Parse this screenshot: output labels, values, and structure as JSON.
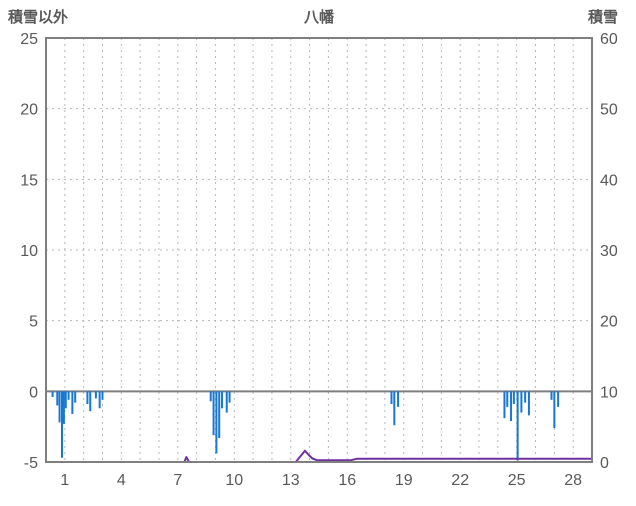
{
  "header": {
    "left_title": "積雪以外",
    "title": "八幡",
    "right_title": "積雪"
  },
  "colors": {
    "background": "#ffffff",
    "frame": "#7f7f7f",
    "grid": "#b8b8b8",
    "zero_line": "#7f7f7f",
    "text": "#595959",
    "bar": "#1777d2",
    "snow_line": "#7030a0"
  },
  "chart_data": {
    "type": "bar",
    "title": "八幡",
    "subtitle": "",
    "legend": "none",
    "left_axis": {
      "label": "積雪以外",
      "range": [
        -5,
        25
      ],
      "ticks": [
        25,
        20,
        15,
        10,
        5,
        0,
        -5
      ]
    },
    "right_axis": {
      "label": "積雪",
      "range": [
        0,
        60
      ],
      "ticks": [
        60,
        50,
        40,
        30,
        20,
        10,
        0
      ]
    },
    "x_axis": {
      "range": [
        0,
        29
      ],
      "ticks": [
        1,
        4,
        7,
        10,
        13,
        16,
        19,
        22,
        25,
        28
      ],
      "gridline_every_day": 1
    },
    "grid": {
      "h_dashed_left_values": [
        20,
        15,
        10,
        5
      ],
      "zero_line_left_value": 0
    },
    "series": [
      {
        "name": "積雪以外",
        "kind": "bar",
        "axis": "left",
        "color": "#1777d2",
        "points": [
          [
            0.35,
            -0.4
          ],
          [
            0.6,
            -1.0
          ],
          [
            0.72,
            -2.2
          ],
          [
            0.85,
            -4.7
          ],
          [
            0.95,
            -2.3
          ],
          [
            1.05,
            -1.2
          ],
          [
            1.2,
            -0.6
          ],
          [
            1.4,
            -1.6
          ],
          [
            1.55,
            -0.8
          ],
          [
            2.2,
            -0.9
          ],
          [
            2.35,
            -1.4
          ],
          [
            2.65,
            -0.5
          ],
          [
            2.85,
            -1.2
          ],
          [
            3.0,
            -0.6
          ],
          [
            8.75,
            -0.7
          ],
          [
            8.9,
            -3.1
          ],
          [
            9.05,
            -4.4
          ],
          [
            9.2,
            -3.3
          ],
          [
            9.35,
            -1.2
          ],
          [
            9.6,
            -1.5
          ],
          [
            9.75,
            -0.8
          ],
          [
            18.35,
            -0.9
          ],
          [
            18.5,
            -2.4
          ],
          [
            18.7,
            -1.1
          ],
          [
            24.35,
            -1.9
          ],
          [
            24.5,
            -1.1
          ],
          [
            24.7,
            -2.1
          ],
          [
            24.85,
            -0.9
          ],
          [
            25.05,
            -4.9
          ],
          [
            25.25,
            -1.5
          ],
          [
            25.45,
            -0.8
          ],
          [
            25.65,
            -1.7
          ],
          [
            26.85,
            -0.6
          ],
          [
            27.0,
            -2.6
          ],
          [
            27.2,
            -1.1
          ]
        ]
      },
      {
        "name": "積雪",
        "kind": "line",
        "axis": "right",
        "color": "#7030a0",
        "segments": [
          [
            [
              7.35,
              0.0
            ],
            [
              7.45,
              0.7
            ],
            [
              7.6,
              0.0
            ]
          ],
          [
            [
              13.3,
              0.1
            ],
            [
              13.6,
              1.1
            ],
            [
              13.75,
              1.6
            ],
            [
              13.95,
              1.0
            ],
            [
              14.15,
              0.5
            ],
            [
              14.4,
              0.25
            ],
            [
              16.2,
              0.25
            ],
            [
              16.5,
              0.45
            ],
            [
              29.0,
              0.45
            ]
          ]
        ]
      }
    ]
  }
}
